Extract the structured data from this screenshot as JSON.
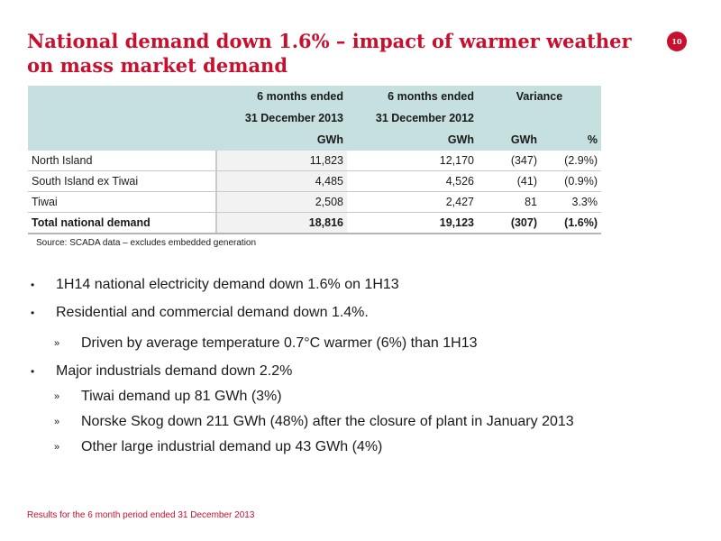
{
  "slide": {
    "title": "National demand down 1.6% – impact of warmer weather on mass market demand",
    "page_number": "10"
  },
  "table": {
    "header": {
      "col_2013_line1": "6 months ended",
      "col_2013_line2": "31 December 2013",
      "col_2012_line1": "6 months ended",
      "col_2012_line2": "31 December 2012",
      "variance": "Variance",
      "unit_2013": "GWh",
      "unit_2012": "GWh",
      "unit_var": "GWh",
      "unit_pct": "%"
    },
    "rows": [
      {
        "region": "North Island",
        "v2013": "11,823",
        "v2012": "12,170",
        "var": "(347)",
        "pct": "(2.9%)"
      },
      {
        "region": "South Island ex Tiwai",
        "v2013": "4,485",
        "v2012": "4,526",
        "var": "(41)",
        "pct": "(0.9%)"
      },
      {
        "region": "Tiwai",
        "v2013": "2,508",
        "v2012": "2,427",
        "var": "81",
        "pct": "3.3%"
      }
    ],
    "total": {
      "region": "Total national demand",
      "v2013": "18,816",
      "v2012": "19,123",
      "var": "(307)",
      "pct": "(1.6%)"
    },
    "source": "Source: SCADA data – excludes embedded generation"
  },
  "bullets": [
    {
      "level": 1,
      "text": "1H14 national electricity demand down 1.6% on 1H13"
    },
    {
      "level": 1,
      "text": "Residential and commercial demand down 1.4%."
    },
    {
      "level": 2,
      "text": "Driven by average temperature 0.7°C warmer (6%) than 1H13"
    },
    {
      "level": 1,
      "text": "Major industrials demand down 2.2%"
    },
    {
      "level": 2,
      "text": "Tiwai demand up 81 GWh (3%)"
    },
    {
      "level": 2,
      "text": "Norske Skog down 211 GWh (48%) after the closure of plant in January 2013"
    },
    {
      "level": 2,
      "text": "Other large industrial demand up 43 GWh (4%)"
    }
  ],
  "bullet_symbols": {
    "level1": "•",
    "level2": "»"
  },
  "footer": "Results for the 6 month period ended 31 December 2013",
  "colors": {
    "accent": "#c8102e",
    "table_header": "#c6dfdf"
  }
}
